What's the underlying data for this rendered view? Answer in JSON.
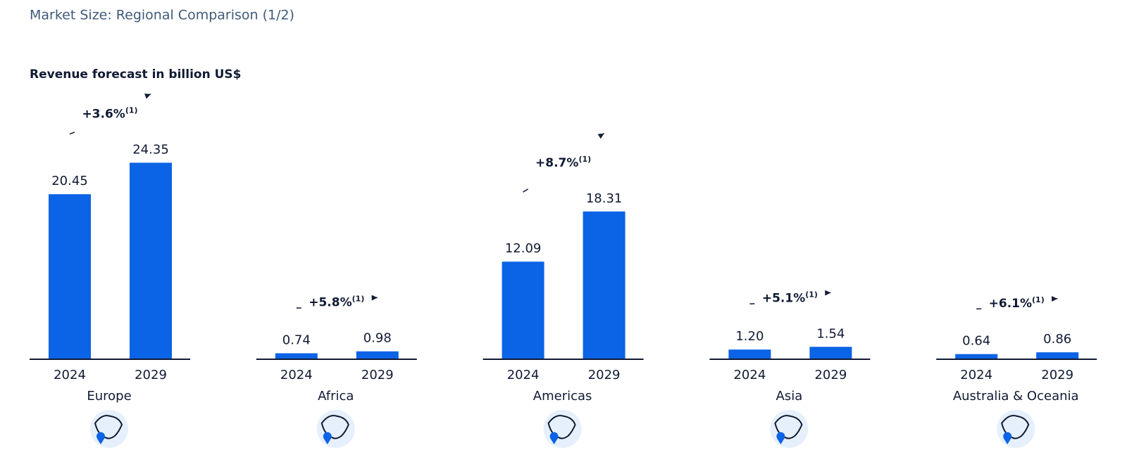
{
  "title": "Market Size: Regional Comparison (1/2)",
  "subtitle": "Revenue forecast in billion US$",
  "chart_data": [
    {
      "type": "bar",
      "xlabel": "Europe",
      "categories": [
        "2024",
        "2029"
      ],
      "values": [
        20.45,
        24.35
      ],
      "value_labels": [
        "20.45",
        "24.35"
      ],
      "annotation": "+3.6%",
      "annotation_note": "(1)",
      "color": "#0b63e5",
      "ylim": [
        0,
        25
      ]
    },
    {
      "type": "bar",
      "xlabel": "Africa",
      "categories": [
        "2024",
        "2029"
      ],
      "values": [
        0.74,
        0.98
      ],
      "value_labels": [
        "0.74",
        "0.98"
      ],
      "annotation": "+5.8%",
      "annotation_note": "(1)",
      "color": "#0b63e5",
      "ylim": [
        0,
        25
      ]
    },
    {
      "type": "bar",
      "xlabel": "Americas",
      "categories": [
        "2024",
        "2029"
      ],
      "values": [
        12.09,
        18.31
      ],
      "value_labels": [
        "12.09",
        "18.31"
      ],
      "annotation": "+8.7%",
      "annotation_note": "(1)",
      "color": "#0b63e5",
      "ylim": [
        0,
        25
      ]
    },
    {
      "type": "bar",
      "xlabel": "Asia",
      "categories": [
        "2024",
        "2029"
      ],
      "values": [
        1.2,
        1.54
      ],
      "value_labels": [
        "1.20",
        "1.54"
      ],
      "annotation": "+5.1%",
      "annotation_note": "(1)",
      "color": "#0b63e5",
      "ylim": [
        0,
        25
      ]
    },
    {
      "type": "bar",
      "xlabel": "Australia & Oceania",
      "categories": [
        "2024",
        "2029"
      ],
      "values": [
        0.64,
        0.86
      ],
      "value_labels": [
        "0.64",
        "0.86"
      ],
      "annotation": "+6.1%",
      "annotation_note": "(1)",
      "color": "#0b63e5",
      "ylim": [
        0,
        25
      ]
    }
  ]
}
